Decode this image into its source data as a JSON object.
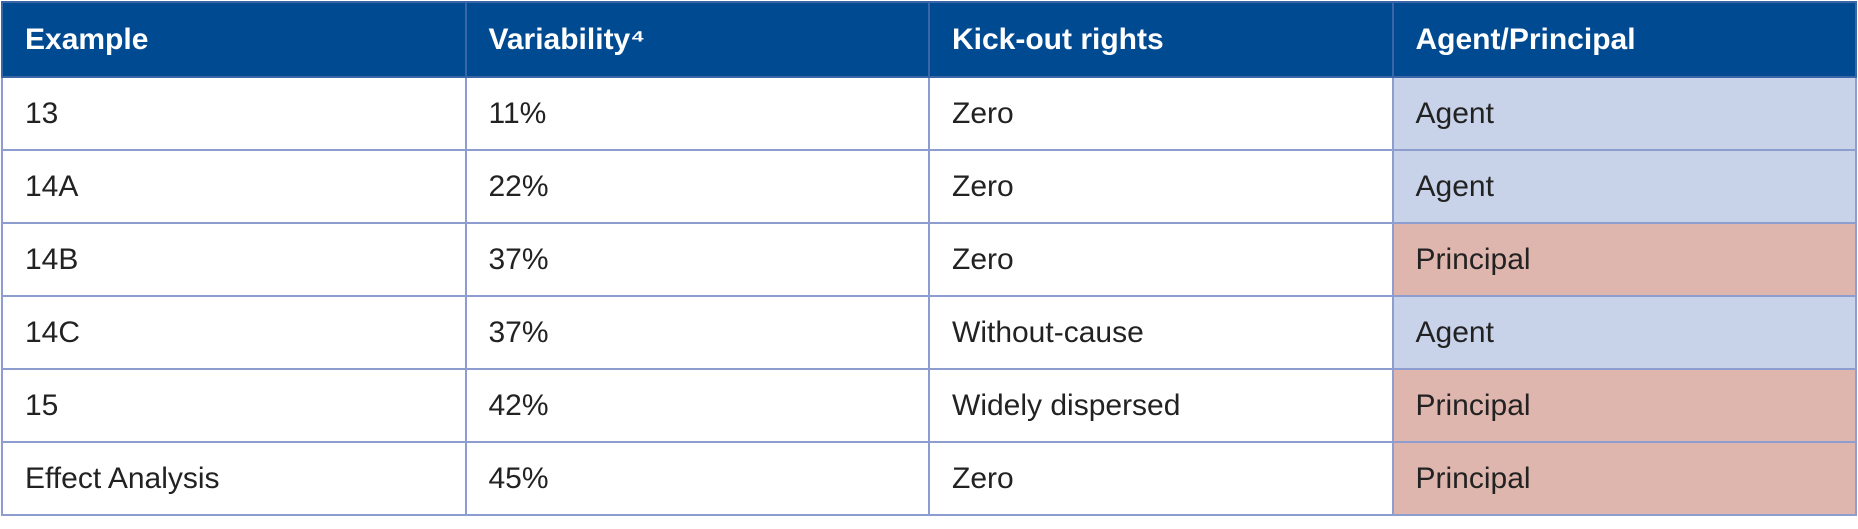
{
  "table": {
    "header": [
      "Example",
      "Variability⁴",
      "Kick-out rights",
      "Agent/Principal"
    ],
    "rows": [
      [
        "13",
        "11%",
        "Zero",
        "Agent"
      ],
      [
        "14A",
        "22%",
        "Zero",
        "Agent"
      ],
      [
        "14B",
        "37%",
        "Zero",
        "Principal"
      ],
      [
        "14C",
        "37%",
        "Without-cause",
        "Agent"
      ],
      [
        "15",
        "42%",
        "Widely dispersed",
        "Principal"
      ],
      [
        "Effect Analysis",
        "45%",
        "Zero",
        "Principal"
      ]
    ]
  }
}
